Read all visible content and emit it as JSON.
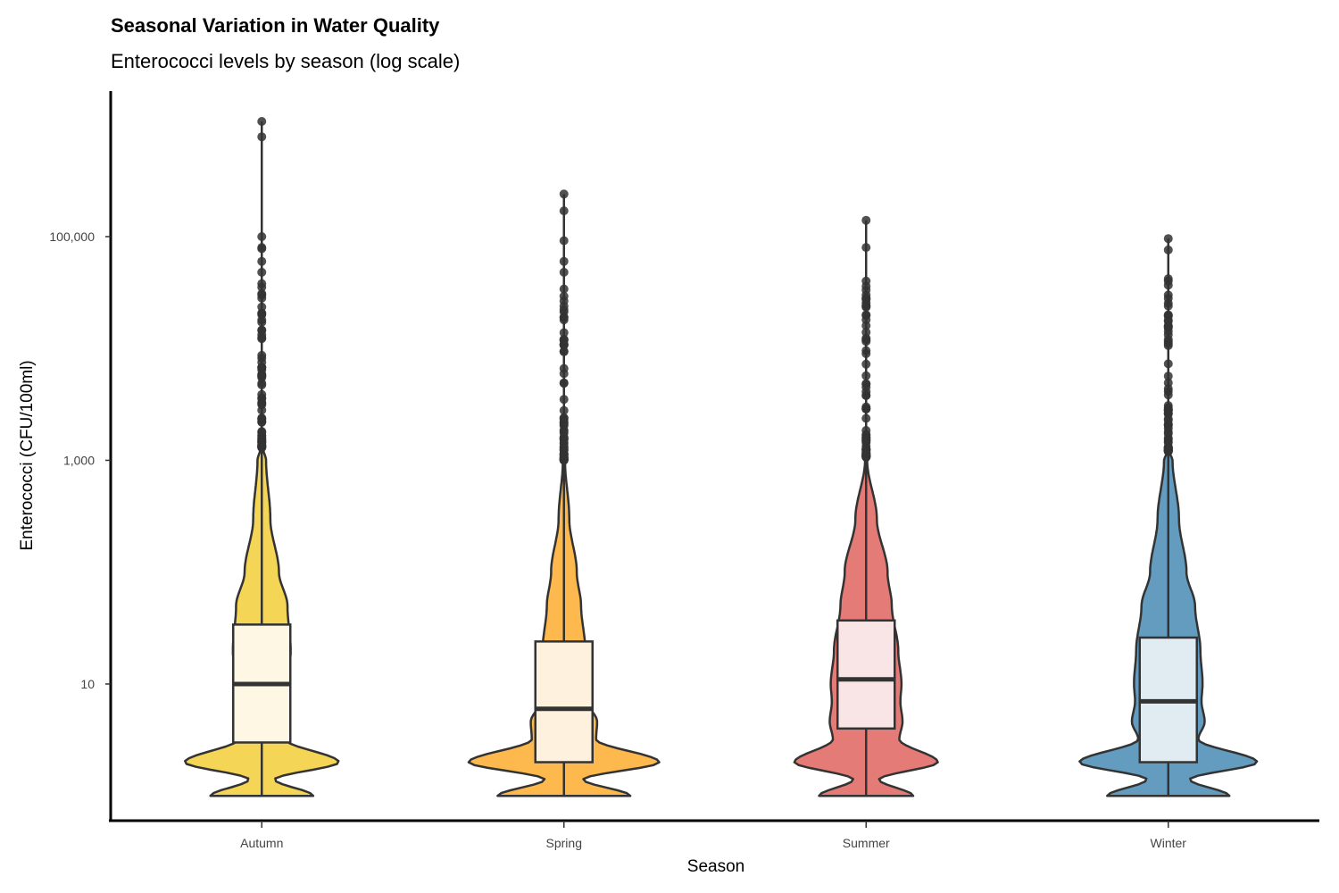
{
  "chart_data": {
    "type": "violin",
    "title": "Seasonal Variation in Water Quality",
    "subtitle": "Enterococci levels by season (log scale)",
    "xlabel": "Season",
    "ylabel": "Enterococci (CFU/100ml)",
    "y_scale": "log10",
    "ylim": [
      0.6,
      2000000
    ],
    "y_ticks": [
      10,
      1000,
      100000
    ],
    "y_tick_labels": [
      "10",
      "1,000",
      "100,000"
    ],
    "categories": [
      "Autumn",
      "Spring",
      "Summer",
      "Winter"
    ],
    "colors": {
      "Autumn": "#F5D556",
      "Spring": "#FDB94D",
      "Summer": "#E47B76",
      "Winter": "#639CBE"
    },
    "box_fills": {
      "Autumn": "#FDF7E3",
      "Spring": "#FEF1DD",
      "Summer": "#F9E5E5",
      "Winter": "#E0EBF2"
    },
    "series": [
      {
        "name": "Autumn",
        "boxplot": {
          "q1": 3,
          "median": 10,
          "q3": 34,
          "whisker_low": 1,
          "whisker_high": 1300
        },
        "outlier_range": [
          1300,
          1070000
        ],
        "outliers_top": [
          1070000,
          780000,
          100000,
          80000,
          78000,
          60000,
          48000,
          38000,
          30000,
          20000
        ],
        "density": [
          [
            1,
            0.48
          ],
          [
            1.4,
            0.12
          ],
          [
            2,
            0.72
          ],
          [
            3.2,
            0.22
          ],
          [
            4.6,
            0.25
          ],
          [
            5.5,
            0.2
          ],
          [
            7,
            0.21
          ],
          [
            10,
            0.24
          ],
          [
            20,
            0.27
          ],
          [
            50,
            0.24
          ],
          [
            100,
            0.16
          ],
          [
            300,
            0.08
          ],
          [
            1000,
            0.04
          ],
          [
            1300,
            0.01
          ]
        ]
      },
      {
        "name": "Spring",
        "boxplot": {
          "q1": 2,
          "median": 6,
          "q3": 24,
          "whisker_low": 1,
          "whisker_high": 1000
        },
        "outlier_range": [
          1000,
          240000
        ],
        "outliers_top": [
          240000,
          170000,
          92000,
          60000,
          48000,
          34000,
          24000,
          18000,
          12000
        ],
        "density": [
          [
            1,
            0.62
          ],
          [
            1.4,
            0.18
          ],
          [
            2,
            0.89
          ],
          [
            3.2,
            0.3
          ],
          [
            4.6,
            0.31
          ],
          [
            7,
            0.22
          ],
          [
            10,
            0.24
          ],
          [
            20,
            0.2
          ],
          [
            50,
            0.16
          ],
          [
            100,
            0.12
          ],
          [
            300,
            0.05
          ],
          [
            1000,
            0.01
          ]
        ]
      },
      {
        "name": "Summer",
        "boxplot": {
          "q1": 4,
          "median": 11,
          "q3": 37,
          "whisker_low": 1,
          "whisker_high": 1070
        },
        "outlier_range": [
          1070,
          140000
        ],
        "outliers_top": [
          140000,
          80000,
          40000,
          36000,
          30000,
          24000,
          20000,
          16000,
          12000
        ],
        "density": [
          [
            1,
            0.44
          ],
          [
            1.4,
            0.12
          ],
          [
            2,
            0.67
          ],
          [
            3.2,
            0.31
          ],
          [
            4.6,
            0.34
          ],
          [
            7,
            0.32
          ],
          [
            10,
            0.33
          ],
          [
            20,
            0.3
          ],
          [
            50,
            0.24
          ],
          [
            100,
            0.2
          ],
          [
            300,
            0.1
          ],
          [
            1000,
            0.01
          ]
        ]
      },
      {
        "name": "Winter",
        "boxplot": {
          "q1": 2,
          "median": 7,
          "q3": 26,
          "whisker_low": 1,
          "whisker_high": 1200
        },
        "outlier_range": [
          1200,
          96000
        ],
        "outliers_top": [
          96000,
          76000,
          42000,
          40000,
          28000,
          24000,
          20000,
          16000,
          12000
        ],
        "density": [
          [
            1,
            0.57
          ],
          [
            1.4,
            0.2
          ],
          [
            2,
            0.83
          ],
          [
            3.2,
            0.28
          ],
          [
            4.6,
            0.34
          ],
          [
            7,
            0.31
          ],
          [
            10,
            0.32
          ],
          [
            20,
            0.3
          ],
          [
            50,
            0.25
          ],
          [
            100,
            0.17
          ],
          [
            300,
            0.1
          ],
          [
            1000,
            0.04
          ],
          [
            1200,
            0.01
          ]
        ]
      }
    ]
  }
}
